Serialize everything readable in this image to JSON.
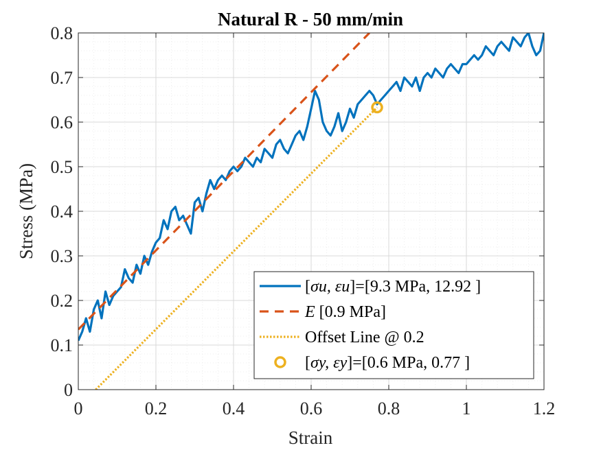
{
  "chart_data": {
    "type": "line",
    "title": "Natural R - 50 mm/min",
    "xlabel": "Strain",
    "ylabel": "Stress (MPa)",
    "xlim": [
      0,
      1.2
    ],
    "ylim": [
      0,
      0.8
    ],
    "xticks": [
      0,
      0.2,
      0.4,
      0.6,
      0.8,
      1,
      1.2
    ],
    "xtick_labels": [
      "0",
      "0.2",
      "0.4",
      "0.6",
      "0.8",
      "1",
      "1.2"
    ],
    "yticks": [
      0,
      0.1,
      0.2,
      0.3,
      0.4,
      0.5,
      0.6,
      0.7,
      0.8
    ],
    "ytick_labels": [
      "0",
      "0.1",
      "0.2",
      "0.3",
      "0.4",
      "0.5",
      "0.6",
      "0.7",
      "0.8"
    ],
    "grid": true,
    "minor_grid": true,
    "legend_position": "bottom-right",
    "series": [
      {
        "name": "[σu, εu]=[9.3 MPa, 12.92 ]",
        "legend_main": "[",
        "legend_math": "σu, εu",
        "legend_rest": "]=[9.3 MPa, 12.92 ]",
        "style": "solid",
        "color": "#0072BD",
        "x": [
          0,
          0.01,
          0.02,
          0.03,
          0.04,
          0.05,
          0.06,
          0.07,
          0.08,
          0.09,
          0.1,
          0.11,
          0.12,
          0.13,
          0.14,
          0.15,
          0.16,
          0.17,
          0.18,
          0.19,
          0.2,
          0.21,
          0.22,
          0.23,
          0.24,
          0.25,
          0.26,
          0.27,
          0.28,
          0.29,
          0.3,
          0.31,
          0.32,
          0.33,
          0.34,
          0.35,
          0.36,
          0.37,
          0.38,
          0.39,
          0.4,
          0.41,
          0.42,
          0.43,
          0.44,
          0.45,
          0.46,
          0.47,
          0.48,
          0.49,
          0.5,
          0.51,
          0.52,
          0.53,
          0.54,
          0.55,
          0.56,
          0.57,
          0.58,
          0.59,
          0.6,
          0.61,
          0.62,
          0.63,
          0.64,
          0.65,
          0.66,
          0.67,
          0.68,
          0.69,
          0.7,
          0.71,
          0.72,
          0.73,
          0.74,
          0.75,
          0.76,
          0.77,
          0.78,
          0.79,
          0.8,
          0.81,
          0.82,
          0.83,
          0.84,
          0.85,
          0.86,
          0.87,
          0.88,
          0.89,
          0.9,
          0.91,
          0.92,
          0.93,
          0.94,
          0.95,
          0.96,
          0.97,
          0.98,
          0.99,
          1.0,
          1.01,
          1.02,
          1.03,
          1.04,
          1.05,
          1.06,
          1.07,
          1.08,
          1.09,
          1.1,
          1.11,
          1.12,
          1.13,
          1.14,
          1.15,
          1.16,
          1.17,
          1.18,
          1.19,
          1.2
        ],
        "y": [
          0.11,
          0.13,
          0.16,
          0.13,
          0.18,
          0.2,
          0.16,
          0.22,
          0.19,
          0.21,
          0.22,
          0.23,
          0.27,
          0.25,
          0.24,
          0.28,
          0.26,
          0.3,
          0.28,
          0.31,
          0.33,
          0.34,
          0.38,
          0.36,
          0.4,
          0.41,
          0.38,
          0.39,
          0.37,
          0.35,
          0.42,
          0.43,
          0.4,
          0.44,
          0.47,
          0.45,
          0.47,
          0.48,
          0.47,
          0.49,
          0.5,
          0.49,
          0.5,
          0.52,
          0.51,
          0.5,
          0.52,
          0.51,
          0.54,
          0.53,
          0.52,
          0.55,
          0.56,
          0.54,
          0.53,
          0.55,
          0.57,
          0.58,
          0.56,
          0.59,
          0.63,
          0.67,
          0.65,
          0.6,
          0.58,
          0.57,
          0.59,
          0.62,
          0.58,
          0.6,
          0.63,
          0.61,
          0.64,
          0.65,
          0.66,
          0.67,
          0.66,
          0.64,
          0.65,
          0.66,
          0.67,
          0.68,
          0.69,
          0.67,
          0.7,
          0.69,
          0.68,
          0.7,
          0.67,
          0.7,
          0.71,
          0.7,
          0.72,
          0.71,
          0.7,
          0.72,
          0.73,
          0.72,
          0.71,
          0.73,
          0.73,
          0.74,
          0.75,
          0.74,
          0.75,
          0.77,
          0.76,
          0.75,
          0.77,
          0.78,
          0.77,
          0.76,
          0.79,
          0.78,
          0.77,
          0.79,
          0.8,
          0.77,
          0.75,
          0.76,
          0.8
        ]
      },
      {
        "name": "E [0.9 MPa]",
        "legend_main": "",
        "legend_math": "E",
        "legend_rest": " [0.9 MPa]",
        "style": "dashed",
        "color": "#D95319",
        "x": [
          0,
          0.75
        ],
        "y": [
          0.135,
          0.8
        ]
      },
      {
        "name": "Offset Line @ 0.2",
        "legend_main": "Offset Line @ 0.2",
        "legend_math": "",
        "legend_rest": "",
        "style": "dotted",
        "color": "#EDB120",
        "x": [
          0.045,
          0.77
        ],
        "y": [
          0,
          0.633
        ]
      },
      {
        "name": "[σy, εy]=[0.6 MPa, 0.77 ]",
        "legend_main": "[",
        "legend_math": "σy, εy",
        "legend_rest": "]=[0.6 MPa, 0.77 ]",
        "style": "marker",
        "color": "#EDB120",
        "x": [
          0.77
        ],
        "y": [
          0.633
        ]
      }
    ]
  }
}
